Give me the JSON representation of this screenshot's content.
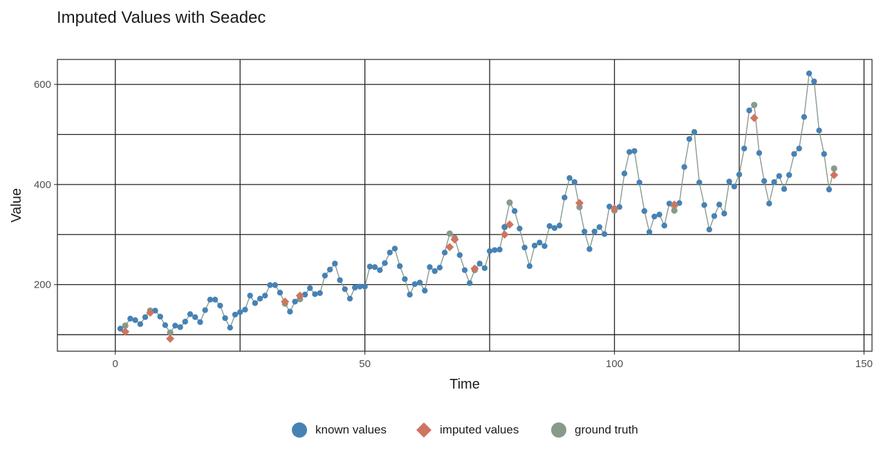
{
  "chart_data": {
    "type": "scatter",
    "title": "Imputed Values with Seadec",
    "xlabel": "Time",
    "ylabel": "Value",
    "xlim": [
      -11.6,
      151.6
    ],
    "ylim": [
      66.9,
      649.9
    ],
    "x_ticks": [
      0,
      50,
      100,
      150
    ],
    "x_tick_labels": [
      "0",
      "50",
      "100",
      "150"
    ],
    "y_ticks": [
      200,
      400,
      600
    ],
    "y_tick_labels": [
      "200",
      "400",
      "600"
    ],
    "x_minor_grid": [
      25,
      75,
      125
    ],
    "y_minor_grid": [
      100,
      300,
      500
    ],
    "grid": true,
    "legend_position": "bottom",
    "colors": {
      "known": "#4682b4",
      "imputed": "#cd7560",
      "ground_truth": "#889a8b",
      "line": "#889a8b"
    },
    "ground_truth_series": [
      112,
      118,
      132,
      129,
      121,
      135,
      148,
      148,
      136,
      119,
      104,
      118,
      115,
      126,
      141,
      135,
      125,
      149,
      170,
      170,
      158,
      133,
      114,
      140,
      145,
      150,
      178,
      163,
      172,
      178,
      199,
      199,
      184,
      162,
      146,
      166,
      171,
      180,
      193,
      181,
      183,
      218,
      230,
      242,
      209,
      191,
      172,
      194,
      196,
      196,
      236,
      235,
      229,
      243,
      264,
      272,
      237,
      211,
      180,
      201,
      204,
      188,
      235,
      227,
      234,
      264,
      302,
      293,
      259,
      229,
      203,
      229,
      242,
      233,
      267,
      269,
      270,
      315,
      364,
      347,
      312,
      274,
      237,
      278,
      284,
      277,
      317,
      313,
      318,
      374,
      413,
      405,
      355,
      306,
      271,
      306,
      315,
      301,
      356,
      348,
      355,
      422,
      465,
      467,
      404,
      347,
      305,
      336,
      340,
      318,
      362,
      348,
      363,
      435,
      491,
      505,
      404,
      359,
      310,
      337,
      360,
      342,
      406,
      396,
      420,
      472,
      548,
      559,
      463,
      407,
      362,
      405,
      417,
      391,
      419,
      461,
      472,
      535,
      622,
      606,
      508,
      461,
      390,
      432
    ],
    "series": [
      {
        "name": "known values",
        "marker": "circle",
        "x": [
          1,
          3,
          4,
          5,
          6,
          8,
          9,
          10,
          12,
          13,
          14,
          15,
          16,
          17,
          18,
          19,
          20,
          21,
          22,
          23,
          24,
          25,
          26,
          27,
          28,
          29,
          30,
          31,
          32,
          33,
          35,
          36,
          38,
          39,
          40,
          41,
          42,
          43,
          44,
          45,
          46,
          47,
          48,
          49,
          50,
          51,
          52,
          53,
          54,
          55,
          56,
          57,
          58,
          59,
          60,
          61,
          62,
          63,
          64,
          65,
          66,
          69,
          70,
          71,
          73,
          74,
          75,
          76,
          77,
          78,
          80,
          81,
          82,
          83,
          84,
          85,
          86,
          87,
          88,
          89,
          90,
          91,
          92,
          94,
          95,
          96,
          97,
          98,
          99,
          101,
          102,
          103,
          104,
          105,
          106,
          107,
          108,
          109,
          110,
          111,
          113,
          114,
          115,
          116,
          117,
          118,
          119,
          120,
          121,
          122,
          123,
          124,
          125,
          126,
          127,
          129,
          130,
          131,
          132,
          133,
          134,
          135,
          136,
          137,
          138,
          139,
          140,
          141,
          142,
          143
        ],
        "y": [
          112,
          132,
          129,
          121,
          135,
          148,
          136,
          119,
          118,
          115,
          126,
          141,
          135,
          125,
          149,
          170,
          170,
          158,
          133,
          114,
          140,
          145,
          150,
          178,
          163,
          172,
          178,
          199,
          199,
          184,
          146,
          166,
          180,
          193,
          181,
          183,
          218,
          230,
          242,
          209,
          191,
          172,
          194,
          196,
          196,
          236,
          235,
          229,
          243,
          264,
          272,
          237,
          211,
          180,
          201,
          204,
          188,
          235,
          227,
          234,
          264,
          259,
          229,
          203,
          242,
          233,
          267,
          269,
          270,
          315,
          347,
          312,
          274,
          237,
          278,
          284,
          277,
          317,
          313,
          318,
          374,
          413,
          405,
          306,
          271,
          306,
          315,
          301,
          356,
          355,
          422,
          465,
          467,
          404,
          347,
          305,
          336,
          340,
          318,
          362,
          363,
          435,
          491,
          505,
          404,
          359,
          310,
          337,
          360,
          342,
          406,
          396,
          420,
          472,
          548,
          463,
          407,
          362,
          405,
          417,
          391,
          419,
          461,
          472,
          535,
          622,
          606,
          508,
          461,
          390
        ]
      },
      {
        "name": "imputed values",
        "marker": "diamond",
        "x": [
          2,
          7,
          11,
          34,
          37,
          67,
          68,
          72,
          78,
          79,
          93,
          100,
          112,
          128,
          144
        ],
        "y": [
          106,
          144,
          92,
          166,
          178,
          275,
          290,
          232,
          300,
          320,
          363,
          352,
          360,
          533,
          419
        ]
      },
      {
        "name": "ground truth",
        "marker": "circle",
        "x": [
          2,
          7,
          11,
          34,
          37,
          67,
          68,
          72,
          78,
          79,
          93,
          100,
          112,
          128,
          144
        ],
        "y": [
          118,
          148,
          104,
          162,
          171,
          302,
          293,
          229,
          315,
          364,
          355,
          348,
          348,
          559,
          432
        ]
      }
    ]
  },
  "legend": {
    "items": [
      {
        "label": "known values",
        "color": "#4682b4",
        "shape": "circle"
      },
      {
        "label": "imputed values",
        "color": "#cd7560",
        "shape": "diamond"
      },
      {
        "label": "ground truth",
        "color": "#889a8b",
        "shape": "circle"
      }
    ]
  }
}
